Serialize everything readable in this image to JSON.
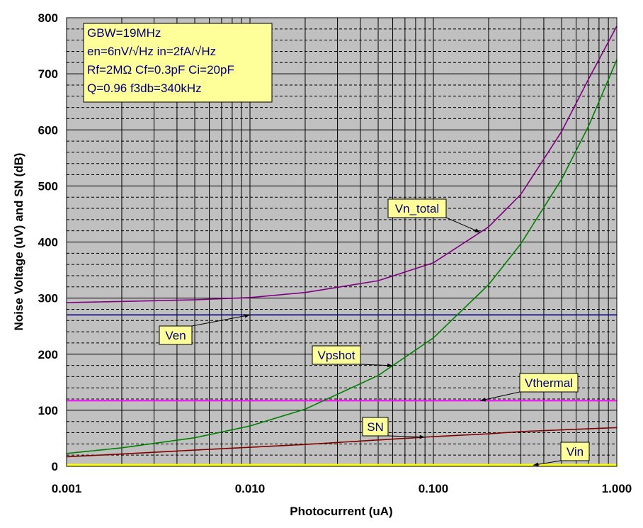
{
  "chart_data": {
    "type": "line",
    "title": "",
    "xlabel": "Photocurrent (uA)",
    "ylabel": "Noise Voltage (uV) and SN (dB)",
    "x_scale": "log",
    "xlim": [
      0.001,
      1.0
    ],
    "ylim": [
      0,
      800
    ],
    "x_ticks": [
      0.001,
      0.01,
      0.1,
      1.0
    ],
    "x_tick_labels": [
      "0.001",
      "0.010",
      "0.100",
      "1.000"
    ],
    "y_ticks": [
      0,
      100,
      200,
      300,
      400,
      500,
      600,
      700,
      800
    ],
    "y_tick_labels": [
      "0",
      "100",
      "200",
      "300",
      "400",
      "500",
      "600",
      "700",
      "800"
    ],
    "grid": true,
    "plot_background": "#c0c0c0",
    "series": [
      {
        "name": "Vn_total",
        "color": "#800080",
        "x": [
          0.001,
          0.002,
          0.005,
          0.01,
          0.02,
          0.05,
          0.1,
          0.2,
          0.3,
          0.5,
          0.7,
          1.0
        ],
        "y": [
          292,
          294,
          297,
          301,
          310,
          331,
          363,
          427,
          485,
          597,
          690,
          785
        ]
      },
      {
        "name": "Ven",
        "color": "#000080",
        "x": [
          0.001,
          1.0
        ],
        "y": [
          270,
          270
        ]
      },
      {
        "name": "Vpshot",
        "color": "#008000",
        "x": [
          0.001,
          0.002,
          0.005,
          0.01,
          0.02,
          0.05,
          0.1,
          0.2,
          0.3,
          0.5,
          0.7,
          1.0
        ],
        "y": [
          23,
          33,
          51,
          72,
          102,
          162,
          229,
          324,
          397,
          512,
          606,
          725
        ]
      },
      {
        "name": "Vthermal",
        "color": "#ff00ff",
        "x": [
          0.001,
          1.0
        ],
        "y": [
          117,
          117
        ]
      },
      {
        "name": "SN",
        "color": "#800000",
        "x": [
          0.001,
          0.002,
          0.005,
          0.01,
          0.02,
          0.05,
          0.1,
          0.2,
          0.3,
          0.5,
          0.7,
          1.0
        ],
        "y": [
          17,
          22,
          29,
          34,
          39,
          47,
          53,
          58,
          62,
          65,
          67,
          69
        ]
      },
      {
        "name": "Vin",
        "color": "#ffff00",
        "x": [
          0.001,
          1.0
        ],
        "y": [
          2,
          2
        ]
      }
    ],
    "annotation_box": {
      "lines": [
        "GBW=19MHz",
        "en=6nV/√Hz   in=2fA/√Hz",
        "Rf=2MΩ   Cf=0.3pF  Ci=20pF",
        "Q=0.96  f3db=340kHz"
      ],
      "background": "#ffff99"
    },
    "callouts": [
      {
        "label": "Vn_total",
        "series": "Vn_total",
        "target_x": 0.18
      },
      {
        "label": "Ven",
        "series": "Ven",
        "target_x": 0.01
      },
      {
        "label": "Vpshot",
        "series": "Vpshot",
        "target_x": 0.06
      },
      {
        "label": "Vthermal",
        "series": "Vthermal",
        "target_x": 0.18
      },
      {
        "label": "SN",
        "series": "SN",
        "target_x": 0.09
      },
      {
        "label": "Vin",
        "series": "Vin",
        "target_x": 0.35
      }
    ],
    "callout_background": "#ffff99"
  }
}
